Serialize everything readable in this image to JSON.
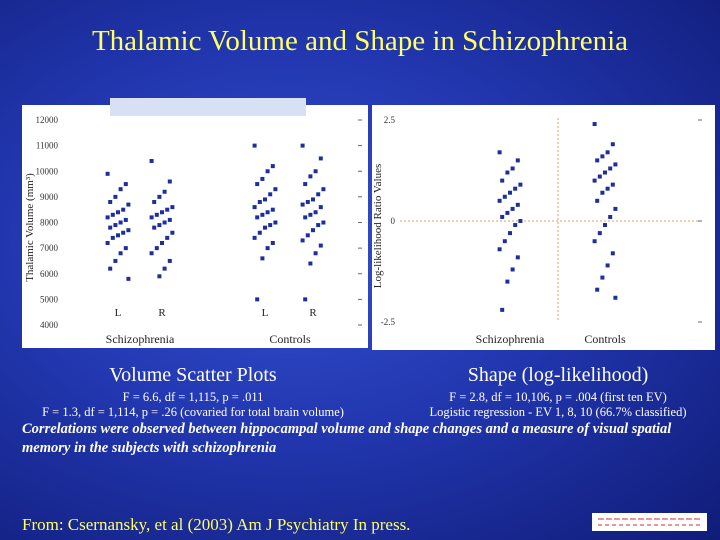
{
  "title": "Thalamic Volume and Shape in Schizophrenia",
  "chart_data": [
    {
      "type": "strip",
      "title": "Volume Scatter Plots",
      "notes": [
        "F = 6.6, df = 1,115, p = .011",
        "F = 1.3, df = 1,114, p = .26 (covaried for total brain volume)"
      ],
      "ylabel": "Thalamic Volume (mm³)",
      "categories": [
        "L",
        "R",
        "L",
        "R"
      ],
      "group_labels": [
        "Schizophrenia",
        "Controls"
      ],
      "color": "#1c2f9c",
      "ylim": [
        4000,
        12000
      ],
      "yticks": [
        4000,
        5000,
        6000,
        7000,
        8000,
        9000,
        10000,
        11000,
        12000
      ],
      "values": [
        [
          9900,
          9500,
          9300,
          9000,
          8800,
          8700,
          8500,
          8400,
          8300,
          8200,
          8100,
          8000,
          7900,
          7800,
          7700,
          7600,
          7500,
          7400,
          7200,
          7000,
          6800,
          6500,
          6200,
          5800
        ],
        [
          10400,
          9600,
          9200,
          9000,
          8800,
          8600,
          8500,
          8400,
          8300,
          8200,
          8100,
          8000,
          7900,
          7800,
          7600,
          7400,
          7200,
          7000,
          6800,
          6500,
          6200,
          5900
        ],
        [
          11000,
          10200,
          10000,
          9700,
          9500,
          9300,
          9100,
          8900,
          8800,
          8600,
          8500,
          8400,
          8300,
          8200,
          8000,
          7900,
          7800,
          7600,
          7400,
          7200,
          7000,
          6600,
          5000
        ],
        [
          11000,
          10500,
          10000,
          9800,
          9500,
          9300,
          9100,
          8900,
          8800,
          8700,
          8600,
          8400,
          8300,
          8200,
          8000,
          7900,
          7700,
          7500,
          7300,
          7100,
          6800,
          6400,
          5000
        ]
      ]
    },
    {
      "type": "strip",
      "title": "Shape (log-likelihood)",
      "notes": [
        "F = 2.8, df = 10,106, p = .004 (first ten EV)",
        "Logistic regression - EV 1, 8, 10 (66.7% classified)"
      ],
      "ylabel": "Log-likelihood Ratio Values",
      "categories": [
        "Schizophrenia",
        "Controls"
      ],
      "color": "#1c2f9c",
      "ylim": [
        -2.5,
        2.5
      ],
      "yticks": [
        -2.5,
        0,
        2.5
      ],
      "values": [
        [
          1.7,
          1.5,
          1.3,
          1.2,
          1.0,
          0.9,
          0.8,
          0.7,
          0.6,
          0.5,
          0.4,
          0.3,
          0.2,
          0.1,
          0.0,
          -0.1,
          -0.3,
          -0.5,
          -0.7,
          -0.9,
          -1.2,
          -1.5,
          -2.2
        ],
        [
          2.4,
          1.9,
          1.7,
          1.6,
          1.5,
          1.4,
          1.3,
          1.2,
          1.1,
          1.0,
          0.9,
          0.8,
          0.7,
          0.5,
          0.3,
          0.1,
          -0.1,
          -0.3,
          -0.5,
          -0.8,
          -1.1,
          -1.4,
          -1.7,
          -1.9
        ]
      ]
    }
  ],
  "conclusion": "Correlations were observed between hippocampal volume and shape changes and a measure of visual spatial memory in the subjects with schizophrenia",
  "source": "From: Csernansky, et al (2003) Am J Psychiatry In press."
}
